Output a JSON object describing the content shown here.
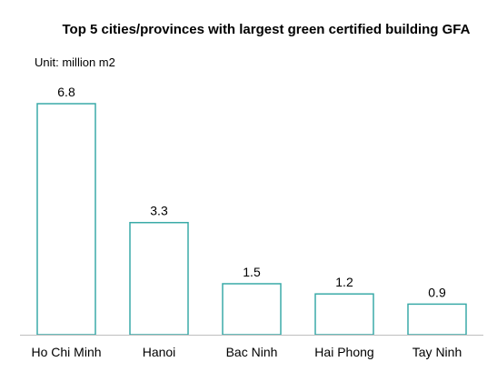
{
  "chart_data": {
    "type": "bar",
    "title": "Top 5 cities/provinces with largest green certified building GFA",
    "unit_label": "Unit: million m2",
    "categories": [
      "Ho Chi Minh",
      "Hanoi",
      "Bac Ninh",
      "Hai Phong",
      "Tay Ninh"
    ],
    "values": [
      6.8,
      3.3,
      1.5,
      1.2,
      0.9
    ],
    "data_labels": [
      "6.8",
      "3.3",
      "1.5",
      "1.2",
      "0.9"
    ],
    "ylim": [
      0,
      6.8
    ],
    "grid": false,
    "legend": "none",
    "colors": {
      "bar_fill": "#ffffff",
      "bar_stroke": "#3aaaa8",
      "axis": "#bfbfbf"
    }
  }
}
